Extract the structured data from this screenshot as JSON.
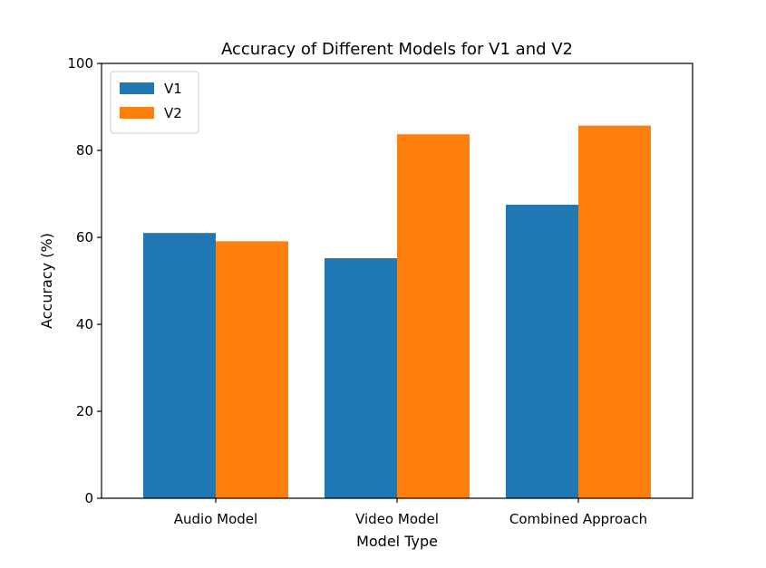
{
  "chart_data": {
    "type": "bar",
    "title": "Accuracy of Different Models for V1 and V2",
    "xlabel": "Model Type",
    "ylabel": "Accuracy (%)",
    "categories": [
      "Audio Model",
      "Video Model",
      "Combined Approach"
    ],
    "series": [
      {
        "name": "V1",
        "values": [
          61,
          55.2,
          67.5
        ],
        "color": "#1f77b4"
      },
      {
        "name": "V2",
        "values": [
          59.1,
          83.7,
          85.7
        ],
        "color": "#ff7f0e"
      }
    ],
    "ylim": [
      0,
      100
    ],
    "yticks": [
      0,
      20,
      40,
      60,
      80,
      100
    ],
    "grid": false,
    "legend_position": "top-left"
  }
}
